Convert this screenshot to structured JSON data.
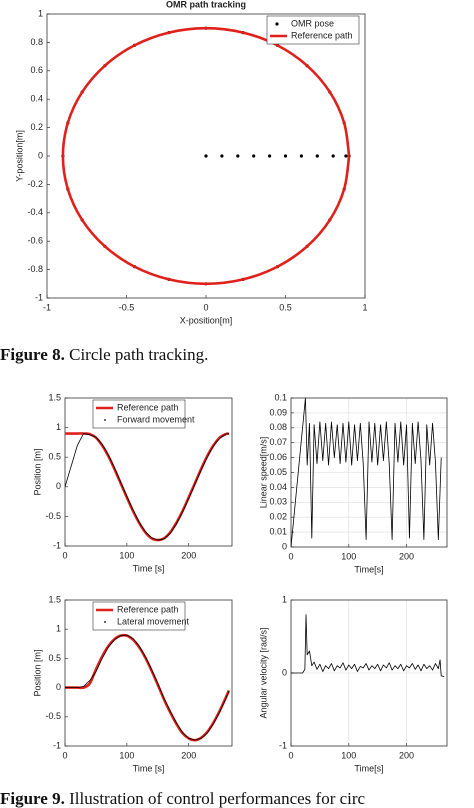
{
  "chart_data": [
    {
      "type": "line",
      "title": "OMR path tracking",
      "x_label": "X-position[m]",
      "y_label": "Y-position[m]",
      "xlim": [
        -1,
        1
      ],
      "xticks": [
        -1,
        -0.5,
        0,
        0.5,
        1
      ],
      "ylim": [
        -1,
        1
      ],
      "yticks": [
        -1,
        -0.8,
        -0.6,
        -0.4,
        -0.2,
        0,
        0.2,
        0.4,
        0.6,
        0.8,
        1
      ],
      "grid": false,
      "legend": "upper right",
      "series": [
        {
          "name": "OMR pose",
          "color": "#000000",
          "style": "dots",
          "x": [
            0,
            0.1,
            0.2,
            0.3,
            0.4,
            0.5,
            0.6,
            0.7,
            0.8,
            0.88,
            0.869,
            0.779,
            0.636,
            0.45,
            0.233,
            0,
            -0.233,
            -0.45,
            -0.636,
            -0.779,
            -0.869,
            -0.9,
            -0.869,
            -0.779,
            -0.636,
            -0.45,
            -0.233,
            0,
            0.233,
            0.45,
            0.636,
            0.779,
            0.869,
            0.9
          ],
          "values": [
            0,
            0,
            0,
            0,
            0,
            0,
            0,
            0,
            0,
            0,
            0.233,
            0.45,
            0.636,
            0.779,
            0.869,
            0.9,
            0.869,
            0.779,
            0.636,
            0.45,
            0.233,
            0,
            -0.233,
            -0.45,
            -0.636,
            -0.779,
            -0.869,
            -0.9,
            -0.869,
            -0.779,
            -0.636,
            -0.45,
            -0.233,
            0
          ]
        },
        {
          "name": "Reference path",
          "color": "#e0201b",
          "style": "line",
          "x": [
            0.9,
            0.869,
            0.779,
            0.636,
            0.45,
            0.233,
            0,
            -0.233,
            -0.45,
            -0.636,
            -0.779,
            -0.869,
            -0.9,
            -0.869,
            -0.779,
            -0.636,
            -0.45,
            -0.233,
            0,
            0.233,
            0.45,
            0.636,
            0.779,
            0.869,
            0.9
          ],
          "values": [
            0,
            0.233,
            0.45,
            0.636,
            0.779,
            0.869,
            0.9,
            0.869,
            0.779,
            0.636,
            0.45,
            0.233,
            0,
            -0.233,
            -0.45,
            -0.636,
            -0.779,
            -0.869,
            -0.9,
            -0.869,
            -0.779,
            -0.636,
            -0.45,
            -0.233,
            0
          ]
        }
      ]
    },
    {
      "type": "line",
      "x_label": "Time [s]",
      "y_label": "Position [m]",
      "xlim": [
        0,
        270
      ],
      "xticks": [
        0,
        100,
        200
      ],
      "ylim": [
        -1,
        1.5
      ],
      "yticks": [
        -1,
        -0.5,
        0,
        0.5,
        1,
        1.5
      ],
      "grid": false,
      "legend": "upper left",
      "series": [
        {
          "name": "Reference path",
          "color": "#e0201b",
          "style": "line",
          "x": [
            0,
            10,
            20,
            30,
            40,
            50,
            60,
            70,
            80,
            90,
            100,
            110,
            120,
            130,
            140,
            150,
            160,
            170,
            180,
            190,
            200,
            210,
            220,
            230,
            240,
            250,
            260,
            265
          ],
          "values": [
            0.9,
            0.9,
            0.9,
            0.9,
            0.89,
            0.83,
            0.7,
            0.52,
            0.3,
            0.06,
            -0.18,
            -0.41,
            -0.61,
            -0.77,
            -0.87,
            -0.9,
            -0.87,
            -0.77,
            -0.61,
            -0.41,
            -0.18,
            0.06,
            0.3,
            0.52,
            0.7,
            0.83,
            0.89,
            0.9
          ]
        },
        {
          "name": "Forward movement",
          "color": "#000000",
          "style": "line",
          "x": [
            0,
            10,
            20,
            30,
            40,
            50,
            60,
            70,
            80,
            90,
            100,
            110,
            120,
            130,
            140,
            150,
            160,
            170,
            180,
            190,
            200,
            210,
            220,
            230,
            240,
            250,
            260,
            265
          ],
          "values": [
            0,
            0.35,
            0.7,
            0.9,
            0.88,
            0.84,
            0.72,
            0.54,
            0.32,
            0.08,
            -0.16,
            -0.39,
            -0.6,
            -0.76,
            -0.86,
            -0.9,
            -0.88,
            -0.79,
            -0.63,
            -0.43,
            -0.2,
            0.04,
            0.28,
            0.5,
            0.69,
            0.82,
            0.89,
            0.9
          ]
        }
      ]
    },
    {
      "type": "line",
      "x_label": "Time[s]",
      "y_label": "Linear speed[m/s]",
      "xlim": [
        0,
        270
      ],
      "xticks": [
        0,
        100,
        200
      ],
      "ylim": [
        0,
        0.1
      ],
      "yticks": [
        0,
        0.01,
        0.02,
        0.03,
        0.04,
        0.05,
        0.06,
        0.07,
        0.08,
        0.09,
        0.1
      ],
      "grid": true,
      "series": [
        {
          "name": "Linear speed",
          "color": "#000000",
          "style": "line",
          "legend": false,
          "x": [
            0,
            25,
            28,
            32,
            36,
            40,
            45,
            50,
            55,
            60,
            65,
            70,
            75,
            80,
            85,
            90,
            95,
            100,
            105,
            110,
            115,
            120,
            125,
            130,
            135,
            140,
            145,
            150,
            155,
            160,
            165,
            170,
            175,
            180,
            185,
            190,
            195,
            200,
            205,
            210,
            215,
            220,
            225,
            230,
            235,
            240,
            245,
            250,
            255,
            260
          ],
          "values": [
            0,
            0.1,
            0.055,
            0.083,
            0.006,
            0.082,
            0.056,
            0.084,
            0.058,
            0.083,
            0.055,
            0.084,
            0.06,
            0.082,
            0.056,
            0.083,
            0.057,
            0.084,
            0.055,
            0.082,
            0.058,
            0.083,
            0.056,
            0.005,
            0.084,
            0.057,
            0.083,
            0.055,
            0.082,
            0.058,
            0.084,
            0.056,
            0.005,
            0.083,
            0.057,
            0.084,
            0.055,
            0.082,
            0.006,
            0.083,
            0.056,
            0.084,
            0.058,
            0.005,
            0.082,
            0.055,
            0.083,
            0.057,
            0.005,
            0.06
          ]
        }
      ]
    },
    {
      "type": "line",
      "x_label": "Time [s]",
      "y_label": "Position [m]",
      "xlim": [
        0,
        270
      ],
      "xticks": [
        0,
        100,
        200
      ],
      "ylim": [
        -1,
        1.5
      ],
      "yticks": [
        -1,
        -0.5,
        0,
        0.5,
        1,
        1.5
      ],
      "grid": false,
      "legend": "upper left",
      "series": [
        {
          "name": "Reference path",
          "color": "#e0201b",
          "style": "line",
          "x": [
            0,
            10,
            20,
            30,
            40,
            50,
            60,
            70,
            80,
            90,
            100,
            110,
            120,
            130,
            140,
            150,
            160,
            170,
            180,
            190,
            200,
            210,
            220,
            230,
            240,
            250,
            260,
            265
          ],
          "values": [
            0,
            0,
            0,
            0,
            0.07,
            0.31,
            0.53,
            0.71,
            0.83,
            0.89,
            0.89,
            0.82,
            0.69,
            0.51,
            0.29,
            0.05,
            -0.2,
            -0.42,
            -0.62,
            -0.78,
            -0.87,
            -0.9,
            -0.86,
            -0.76,
            -0.6,
            -0.4,
            -0.17,
            -0.05
          ]
        },
        {
          "name": "Lateral movement",
          "color": "#000000",
          "style": "line",
          "x": [
            0,
            10,
            20,
            30,
            40,
            50,
            60,
            70,
            80,
            90,
            100,
            110,
            120,
            130,
            140,
            150,
            160,
            170,
            180,
            190,
            200,
            210,
            220,
            230,
            240,
            250,
            260,
            265
          ],
          "values": [
            0,
            0,
            0,
            0.02,
            0.12,
            0.27,
            0.5,
            0.69,
            0.82,
            0.89,
            0.9,
            0.84,
            0.71,
            0.53,
            0.31,
            0.07,
            -0.18,
            -0.4,
            -0.6,
            -0.77,
            -0.87,
            -0.9,
            -0.87,
            -0.78,
            -0.62,
            -0.42,
            -0.19,
            -0.06
          ]
        }
      ]
    },
    {
      "type": "line",
      "x_label": "Time[s]",
      "y_label": "Angular velocity [rad/s]",
      "xlim": [
        0,
        270
      ],
      "xticks": [
        0,
        100,
        200
      ],
      "ylim": [
        -1,
        1
      ],
      "yticks": [
        -1,
        0,
        1
      ],
      "grid": true,
      "series": [
        {
          "name": "Angular velocity",
          "color": "#000000",
          "style": "line",
          "legend": false,
          "x": [
            0,
            20,
            24,
            26,
            28,
            32,
            36,
            40,
            45,
            50,
            55,
            60,
            65,
            70,
            75,
            80,
            85,
            90,
            95,
            100,
            105,
            110,
            115,
            120,
            125,
            130,
            135,
            140,
            145,
            150,
            155,
            160,
            165,
            170,
            175,
            180,
            185,
            190,
            195,
            200,
            205,
            210,
            215,
            220,
            225,
            230,
            235,
            240,
            245,
            250,
            255,
            258,
            260,
            265
          ],
          "values": [
            0,
            0,
            0.05,
            0.8,
            0.25,
            0.3,
            0.1,
            0.15,
            0.05,
            0.12,
            0.02,
            0.1,
            0.06,
            0.13,
            0.03,
            0.1,
            0.07,
            0.14,
            0.04,
            0.11,
            0.06,
            0.12,
            0.02,
            0.09,
            0.07,
            0.13,
            0.04,
            0.1,
            0.06,
            0.12,
            0.03,
            0.11,
            0.07,
            0.14,
            0.04,
            0.1,
            0.06,
            0.12,
            0.03,
            0.1,
            0.07,
            0.13,
            0.05,
            0.11,
            0.03,
            0.12,
            0.06,
            0.1,
            0.04,
            0.13,
            0.06,
            0.18,
            -0.04,
            -0.05
          ]
        }
      ]
    }
  ],
  "captions": [
    {
      "label": "Figure 8.",
      "text": "Circle path tracking."
    },
    {
      "label": "Figure 9.",
      "text": "Illustration of control performances for circ"
    }
  ]
}
